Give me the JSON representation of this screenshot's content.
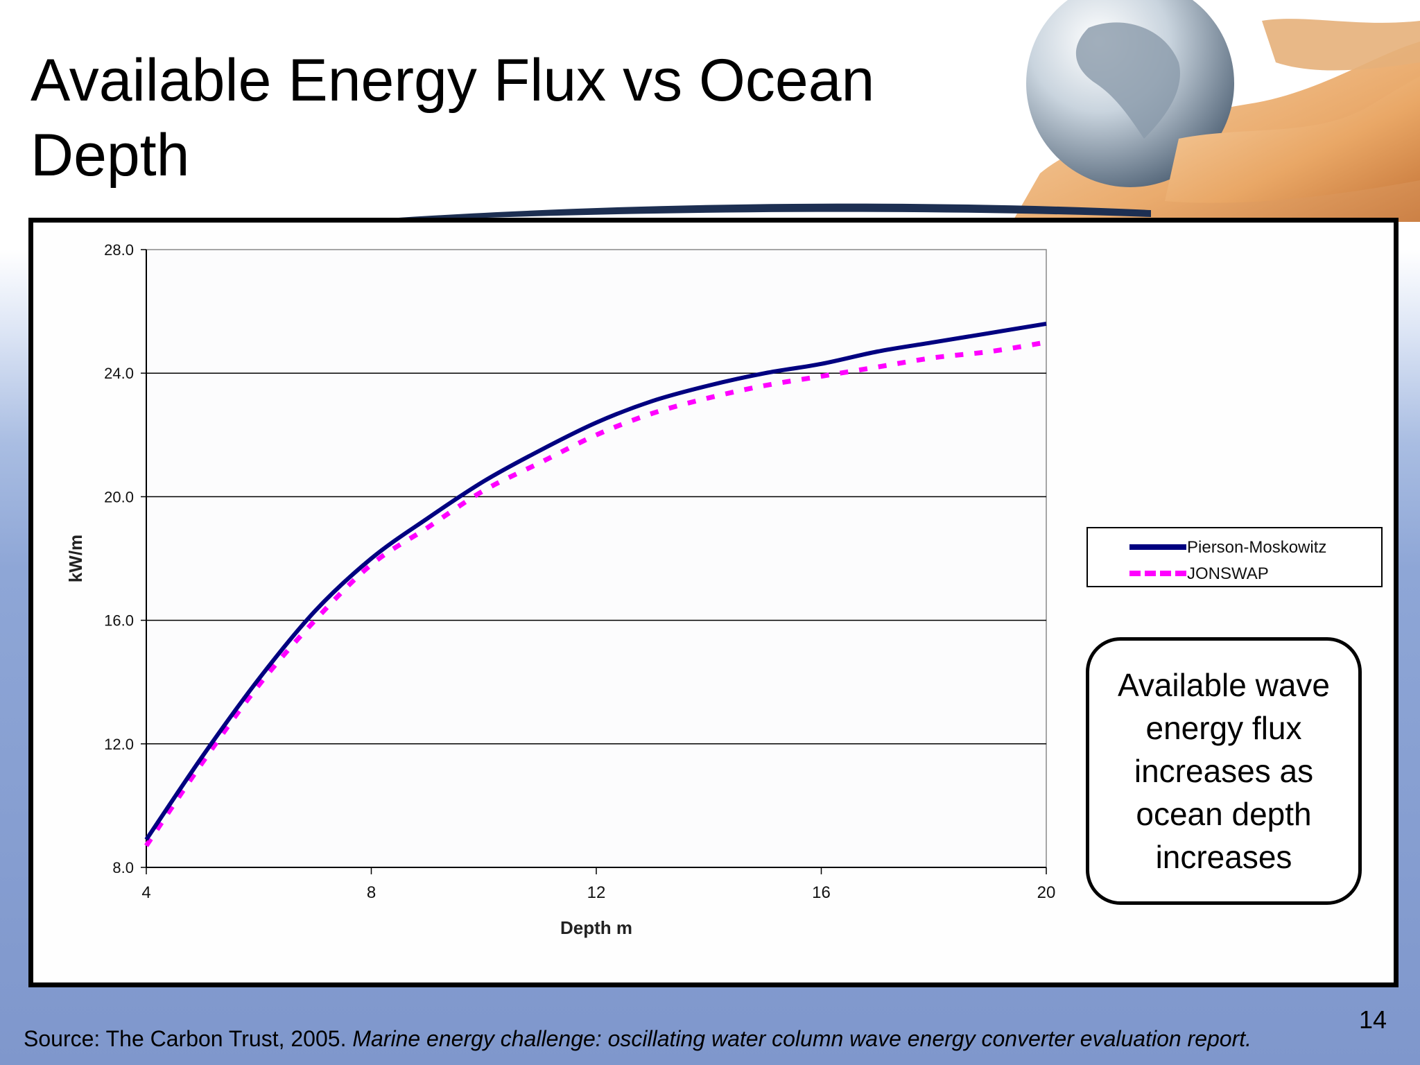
{
  "slide": {
    "title_line1": "Available Energy Flux vs Ocean",
    "title_line2": "Depth",
    "callout": "Available wave energy flux increases as ocean depth increases",
    "source_prefix": "Source: The Carbon Trust, 2005. ",
    "source_italic": "Marine energy challenge: oscillating water column wave energy converter evaluation report.",
    "page_number": "14"
  },
  "chart_data": {
    "type": "line",
    "xlabel": "Depth m",
    "ylabel": "kW/m",
    "xlim": [
      4,
      20
    ],
    "ylim": [
      8.0,
      28.0
    ],
    "xticks": [
      "4",
      "8",
      "12",
      "16",
      "20"
    ],
    "yticks": [
      "8.0",
      "12.0",
      "16.0",
      "20.0",
      "24.0",
      "28.0"
    ],
    "grid": "horizontal",
    "legend_position": "right",
    "x": [
      4,
      5,
      6,
      7,
      8,
      9,
      10,
      11,
      12,
      13,
      14,
      15,
      16,
      17,
      18,
      19,
      20
    ],
    "series": [
      {
        "name": "Pierson-Moskowitz",
        "color": "#000080",
        "style": "solid",
        "values": [
          8.9,
          11.6,
          14.1,
          16.3,
          18.0,
          19.3,
          20.5,
          21.5,
          22.4,
          23.1,
          23.6,
          24.0,
          24.3,
          24.7,
          25.0,
          25.3,
          25.6
        ]
      },
      {
        "name": "JONSWAP",
        "color": "#ff00ff",
        "style": "dashed",
        "values": [
          8.7,
          11.4,
          13.9,
          16.0,
          17.8,
          19.0,
          20.2,
          21.1,
          22.0,
          22.7,
          23.2,
          23.6,
          23.9,
          24.2,
          24.5,
          24.7,
          25.0
        ]
      }
    ]
  }
}
